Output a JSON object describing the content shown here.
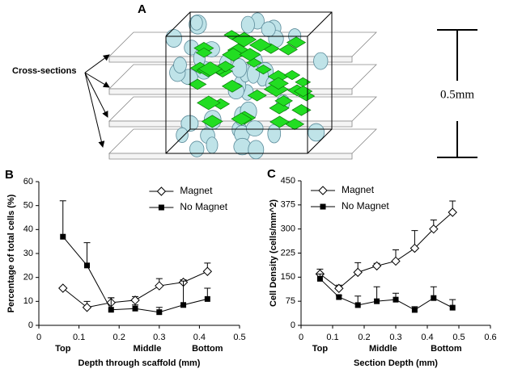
{
  "diagram": {
    "panel": "A",
    "label": "Cross-sections",
    "scale": "0.5mm"
  },
  "chart_data": [
    {
      "type": "line",
      "panel": "B",
      "xlabel": "Depth through scaffold (mm)",
      "ylabel": "Percentage of total cells (%)",
      "xlim": [
        0,
        0.5
      ],
      "xticks": [
        0,
        0.1,
        0.2,
        0.3,
        0.4,
        0.5
      ],
      "ylim": [
        0,
        60
      ],
      "yticks": [
        0,
        10,
        20,
        30,
        40,
        50,
        60
      ],
      "x_annotations": [
        {
          "value": 0.06,
          "label": "Top"
        },
        {
          "value": 0.27,
          "label": "Middle"
        },
        {
          "value": 0.42,
          "label": "Bottom"
        }
      ],
      "legend": "upper right",
      "x": [
        0.06,
        0.12,
        0.18,
        0.24,
        0.3,
        0.36,
        0.42
      ],
      "series": [
        {
          "name": "Magnet",
          "color": "#000000",
          "marker": "diamond-open",
          "values": [
            15.5,
            7.5,
            9.5,
            10.5,
            16.5,
            18,
            22.5
          ],
          "errors": [
            0.5,
            2.5,
            2,
            1.5,
            3,
            1,
            3.5
          ]
        },
        {
          "name": "No Magnet",
          "color": "#000000",
          "marker": "square",
          "values": [
            37,
            25,
            6.5,
            7,
            5.5,
            8.5,
            11
          ],
          "errors": [
            15,
            9.5,
            5,
            1.5,
            2,
            10,
            4.5
          ]
        }
      ]
    },
    {
      "type": "line",
      "panel": "C",
      "xlabel": "Section Depth (mm)",
      "ylabel": "Cell Density (cells/mm^2)",
      "xlim": [
        0,
        0.6
      ],
      "xticks": [
        0,
        0.1,
        0.2,
        0.3,
        0.4,
        0.5,
        0.6
      ],
      "ylim": [
        0,
        450
      ],
      "yticks": [
        0,
        75,
        150,
        225,
        300,
        375,
        450
      ],
      "x_annotations": [
        {
          "value": 0.06,
          "label": "Top"
        },
        {
          "value": 0.26,
          "label": "Middle"
        },
        {
          "value": 0.46,
          "label": "Bottom"
        }
      ],
      "legend": "upper left",
      "x": [
        0.06,
        0.12,
        0.18,
        0.24,
        0.3,
        0.36,
        0.42,
        0.48
      ],
      "series": [
        {
          "name": "Magnet",
          "color": "#000000",
          "marker": "diamond-open",
          "values": [
            160,
            115,
            165,
            185,
            200,
            240,
            300,
            352
          ],
          "errors": [
            15,
            10,
            30,
            8,
            35,
            55,
            28,
            35
          ]
        },
        {
          "name": "No Magnet",
          "color": "#000000",
          "marker": "square",
          "values": [
            145,
            88,
            63,
            75,
            80,
            48,
            85,
            55
          ],
          "errors": [
            15,
            5,
            28,
            45,
            20,
            10,
            35,
            25
          ]
        }
      ]
    }
  ]
}
